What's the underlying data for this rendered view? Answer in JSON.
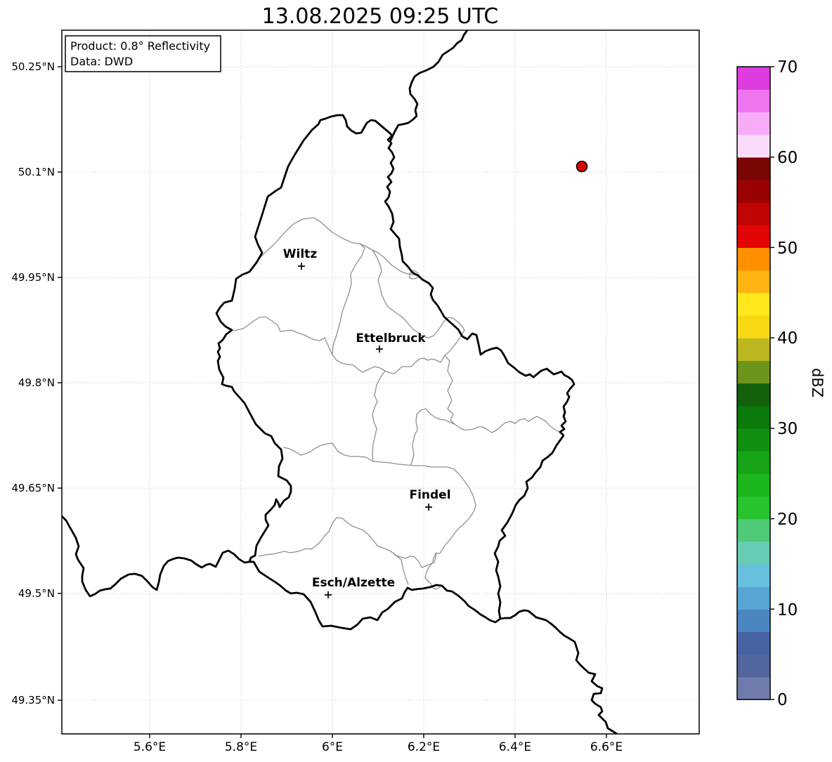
{
  "figure": {
    "title": "13.08.2025 09:25 UTC"
  },
  "info_box": {
    "line1": "Product: 0.8° Reflectivity",
    "line2": "Data: DWD"
  },
  "map": {
    "x_tick_labels": [
      "5.6°E",
      "5.8°E",
      "6°E",
      "6.2°E",
      "6.4°E",
      "6.6°E"
    ],
    "y_tick_labels": [
      "50.25°N",
      "50.1°N",
      "49.95°N",
      "49.8°N",
      "49.65°N",
      "49.5°N",
      "49.35°N"
    ],
    "cities": [
      {
        "name": "Wiltz"
      },
      {
        "name": "Ettelbruck"
      },
      {
        "name": "Findel"
      },
      {
        "name": "Esch/Alzette"
      }
    ],
    "radar_marker": {
      "color": "#dd0000",
      "edge_color": "#000000"
    }
  },
  "colorbar": {
    "label": "dBZ",
    "tick_labels": [
      "70",
      "60",
      "50",
      "40",
      "30",
      "20",
      "10",
      "0"
    ],
    "range_min": 0,
    "range_max": 70,
    "colors_bottom_to_top": [
      "#6f7cab",
      "#53679e",
      "#4663a4",
      "#4b86c0",
      "#58a5d3",
      "#67c1de",
      "#67ccb4",
      "#4fca77",
      "#27c42e",
      "#1db61d",
      "#16a416",
      "#108f10",
      "#0b7a0b",
      "#15600d",
      "#6d941b",
      "#bcb71f",
      "#f8d812",
      "#ffe81c",
      "#ffb412",
      "#ff9000",
      "#e30505",
      "#c00303",
      "#9a0202",
      "#7a0606",
      "#fcdcfc",
      "#f8acf8",
      "#ef74ef",
      "#de3cde"
    ]
  }
}
